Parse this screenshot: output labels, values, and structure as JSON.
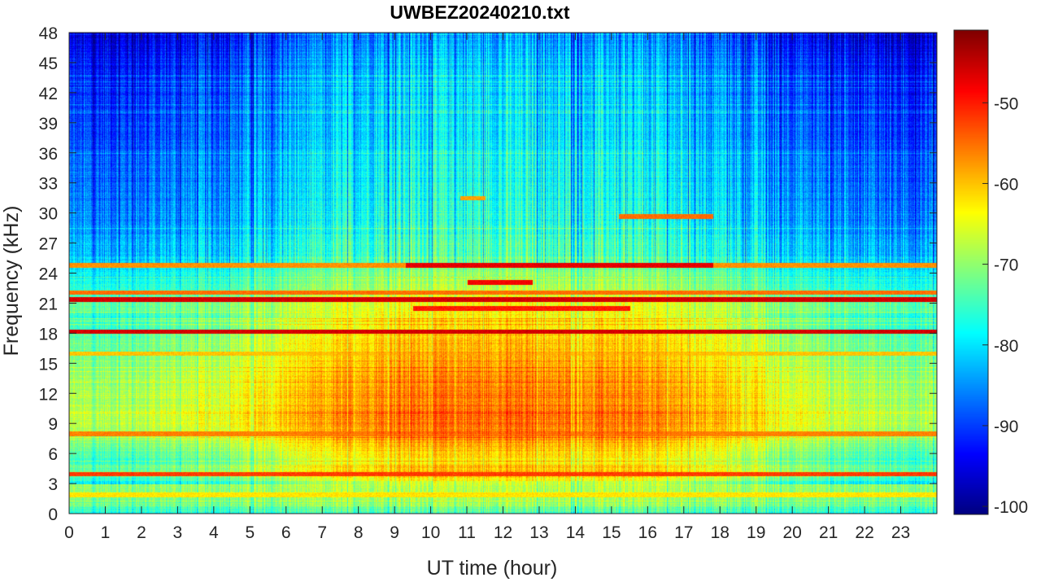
{
  "chart_data": {
    "type": "heatmap",
    "title": "UWBEZ20240210.txt",
    "xlabel": "UT time (hour)",
    "ylabel": "Frequency (kHz)",
    "xlim": [
      0,
      24
    ],
    "ylim": [
      0,
      48
    ],
    "x_ticks": [
      0,
      1,
      2,
      3,
      4,
      5,
      6,
      7,
      8,
      9,
      10,
      11,
      12,
      13,
      14,
      15,
      16,
      17,
      18,
      19,
      20,
      21,
      22,
      23
    ],
    "y_ticks": [
      0,
      3,
      6,
      9,
      12,
      15,
      18,
      21,
      24,
      27,
      30,
      33,
      36,
      39,
      42,
      45,
      48
    ],
    "colorbar": {
      "colormap": "jet",
      "clim": [
        -101,
        -41
      ],
      "ticks": [
        -100,
        -90,
        -80,
        -70,
        -60,
        -50
      ]
    },
    "hour_activity": [
      0.25,
      0.25,
      0.3,
      0.35,
      0.45,
      0.55,
      0.7,
      0.8,
      0.9,
      1.0,
      1.0,
      1.0,
      1.0,
      1.0,
      0.95,
      0.95,
      0.9,
      0.85,
      0.75,
      0.6,
      0.45,
      0.35,
      0.3,
      0.25,
      0.25
    ],
    "frequency_profile_kHz_dB": [
      [
        0,
        -74
      ],
      [
        1,
        -69
      ],
      [
        2,
        -67
      ],
      [
        3,
        -67
      ],
      [
        4,
        -57
      ],
      [
        5,
        -62
      ],
      [
        6,
        -60
      ],
      [
        8,
        -55
      ],
      [
        10,
        -54
      ],
      [
        12,
        -55
      ],
      [
        14,
        -57
      ],
      [
        16,
        -58
      ],
      [
        18,
        -60
      ],
      [
        21,
        -64
      ],
      [
        24,
        -70
      ],
      [
        27,
        -74
      ],
      [
        30,
        -76
      ],
      [
        33,
        -77
      ],
      [
        36,
        -78
      ],
      [
        39,
        -79
      ],
      [
        42,
        -80
      ],
      [
        45,
        -81
      ],
      [
        48,
        -84
      ]
    ],
    "narrowband_lines": [
      {
        "freq_kHz": 4.0,
        "level_dB": -52,
        "from_hour": 0,
        "to_hour": 24
      },
      {
        "freq_kHz": 8.0,
        "level_dB": -56,
        "from_hour": 0,
        "to_hour": 24
      },
      {
        "freq_kHz": 18.2,
        "level_dB": -46,
        "from_hour": 0,
        "to_hour": 24
      },
      {
        "freq_kHz": 21.4,
        "level_dB": -46,
        "from_hour": 0,
        "to_hour": 24
      },
      {
        "freq_kHz": 22.1,
        "level_dB": -55,
        "from_hour": 0,
        "to_hour": 24
      },
      {
        "freq_kHz": 24.8,
        "level_dB": -57,
        "from_hour": 0,
        "to_hour": 24
      },
      {
        "freq_kHz": 24.8,
        "level_dB": -47,
        "from_hour": 9.3,
        "to_hour": 17.8
      },
      {
        "freq_kHz": 20.5,
        "level_dB": -50,
        "from_hour": 9.5,
        "to_hour": 15.5
      },
      {
        "freq_kHz": 23.1,
        "level_dB": -48,
        "from_hour": 11.0,
        "to_hour": 12.8
      },
      {
        "freq_kHz": 29.7,
        "level_dB": -55,
        "from_hour": 15.2,
        "to_hour": 17.8
      },
      {
        "freq_kHz": 31.5,
        "level_dB": -58,
        "from_hour": 10.8,
        "to_hour": 11.5
      },
      {
        "freq_kHz": 16.0,
        "level_dB": -60,
        "from_hour": 0,
        "to_hour": 24
      },
      {
        "freq_kHz": 1.9,
        "level_dB": -62,
        "from_hour": 0,
        "to_hour": 24
      }
    ]
  }
}
